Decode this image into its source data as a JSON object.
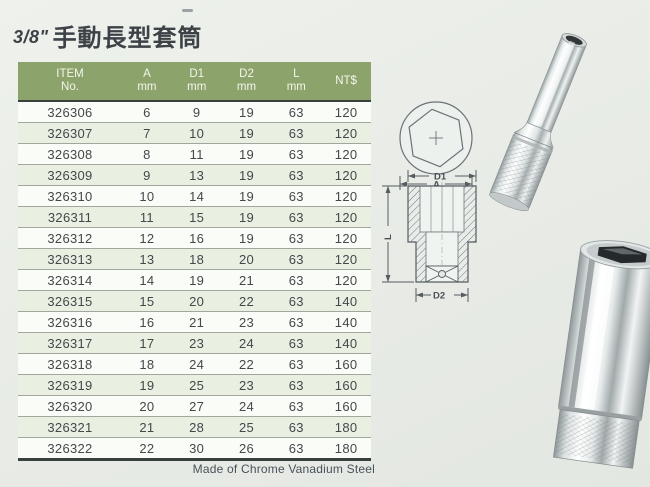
{
  "page": {
    "title_fraction": "3/8\"",
    "title_text": "手動長型套筒",
    "footnote": "Made of Chrome Vanadium Steel"
  },
  "table": {
    "columns": [
      {
        "line1": "ITEM",
        "line2": "No."
      },
      {
        "line1": "A",
        "line2": "mm"
      },
      {
        "line1": "D1",
        "line2": "mm"
      },
      {
        "line1": "D2",
        "line2": "mm"
      },
      {
        "line1": "L",
        "line2": "mm"
      },
      {
        "line1": "NT$",
        "line2": ""
      }
    ],
    "rows": [
      [
        "326306",
        "6",
        "9",
        "19",
        "63",
        "120"
      ],
      [
        "326307",
        "7",
        "10",
        "19",
        "63",
        "120"
      ],
      [
        "326308",
        "8",
        "11",
        "19",
        "63",
        "120"
      ],
      [
        "326309",
        "9",
        "13",
        "19",
        "63",
        "120"
      ],
      [
        "326310",
        "10",
        "14",
        "19",
        "63",
        "120"
      ],
      [
        "326311",
        "11",
        "15",
        "19",
        "63",
        "120"
      ],
      [
        "326312",
        "12",
        "16",
        "19",
        "63",
        "120"
      ],
      [
        "326313",
        "13",
        "18",
        "20",
        "63",
        "120"
      ],
      [
        "326314",
        "14",
        "19",
        "21",
        "63",
        "120"
      ],
      [
        "326315",
        "15",
        "20",
        "22",
        "63",
        "140"
      ],
      [
        "326316",
        "16",
        "21",
        "23",
        "63",
        "140"
      ],
      [
        "326317",
        "17",
        "23",
        "24",
        "63",
        "140"
      ],
      [
        "326318",
        "18",
        "24",
        "22",
        "63",
        "160"
      ],
      [
        "326319",
        "19",
        "25",
        "23",
        "63",
        "160"
      ],
      [
        "326320",
        "20",
        "27",
        "24",
        "63",
        "160"
      ],
      [
        "326321",
        "21",
        "28",
        "25",
        "63",
        "180"
      ],
      [
        "326322",
        "22",
        "30",
        "26",
        "63",
        "180"
      ]
    ]
  },
  "diagram": {
    "label_a": "A",
    "label_d1": "D1",
    "label_d2": "D2",
    "label_l": "L"
  },
  "colors": {
    "header_bg": "#8ca36c",
    "page_bg": "#e9ece7",
    "divider_dark": "#39413c"
  }
}
